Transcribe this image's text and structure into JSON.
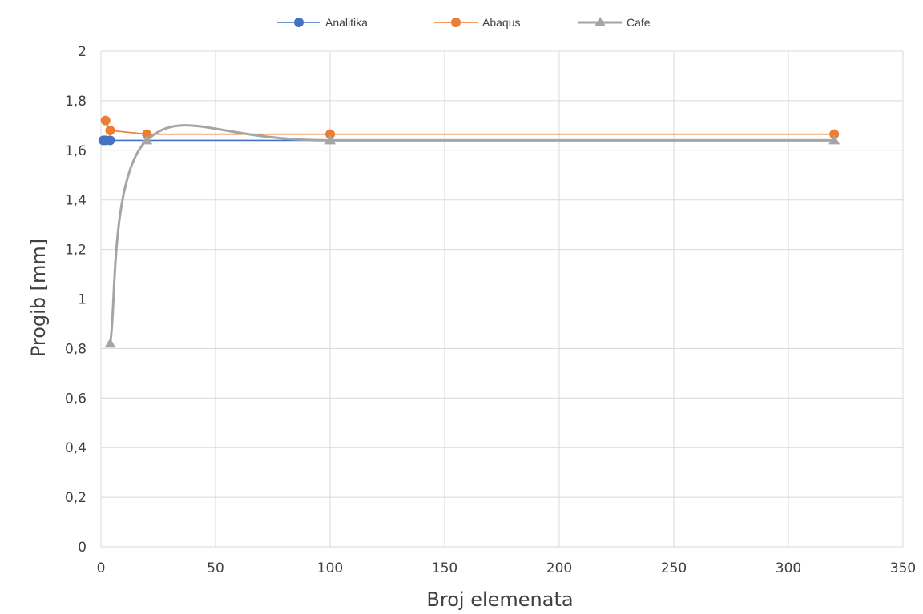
{
  "chart_data": {
    "type": "line",
    "xlabel": "Broj elemenata",
    "ylabel": "Progib [mm]",
    "xlim": [
      0,
      350
    ],
    "ylim": [
      0,
      2
    ],
    "x_ticks": [
      "0",
      "50",
      "100",
      "150",
      "200",
      "250",
      "300",
      "350"
    ],
    "y_ticks": [
      "0",
      "0,2",
      "0,4",
      "0,6",
      "0,8",
      "1",
      "1,2",
      "1,4",
      "1,6",
      "1,8",
      "2"
    ],
    "grid": true,
    "legend_position": "top",
    "series": [
      {
        "name": "Analitika",
        "color": "#4472C4",
        "marker": "circle",
        "smooth": false,
        "points": [
          [
            1,
            1.64
          ],
          [
            2,
            1.64
          ],
          [
            4,
            1.64
          ],
          [
            320,
            1.64
          ]
        ],
        "marked": [
          true,
          true,
          true,
          false
        ]
      },
      {
        "name": "Abaqus",
        "color": "#ED7D31",
        "marker": "circle",
        "smooth": false,
        "points": [
          [
            2,
            1.72
          ],
          [
            4,
            1.68
          ],
          [
            20,
            1.665
          ],
          [
            100,
            1.665
          ],
          [
            320,
            1.665
          ]
        ],
        "marked": [
          true,
          true,
          true,
          true,
          true
        ]
      },
      {
        "name": "Cafe",
        "color": "#A5A5A5",
        "marker": "triangle",
        "smooth": true,
        "points": [
          [
            4,
            0.82
          ],
          [
            20,
            1.64
          ],
          [
            100,
            1.64
          ],
          [
            320,
            1.64
          ]
        ],
        "marked": [
          true,
          true,
          true,
          true
        ]
      }
    ]
  }
}
